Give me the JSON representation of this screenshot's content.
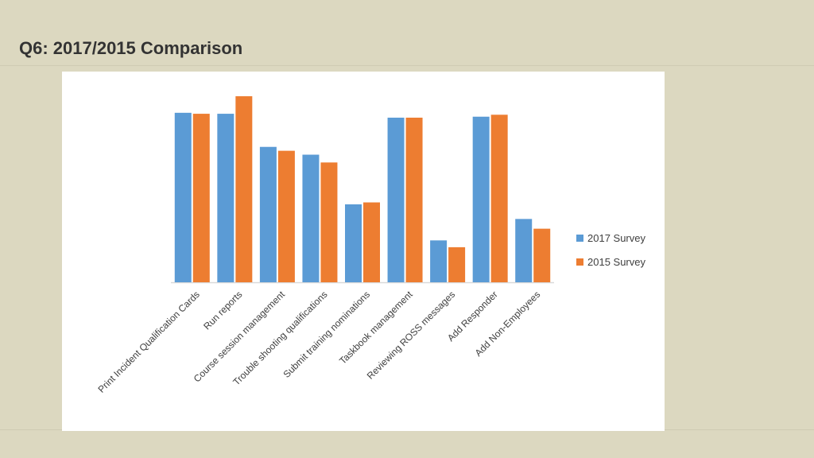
{
  "slide": {
    "title": "Q6: 2017/2015 Comparison"
  },
  "colors": {
    "series_2017": "#5b9bd5",
    "series_2015": "#ed7d31",
    "background": "#dcd8c0",
    "axis": "#d9d9d9"
  },
  "chart_data": {
    "type": "bar",
    "title": "",
    "xlabel": "",
    "ylabel": "",
    "ylim": [
      0,
      100
    ],
    "grid": false,
    "legend_position": "right",
    "categories": [
      "Print Incident Qualification Cards",
      "Run reports",
      "Course session management",
      "Trouble shooting qualifications",
      "Submit training nominations",
      "Taskbook management",
      "Reviewing ROSS messages",
      "Add Responder",
      "Add Non-Employees"
    ],
    "series": [
      {
        "name": "2017 Survey",
        "values": [
          87,
          86.5,
          69.5,
          65.5,
          40,
          84.5,
          21.5,
          85,
          32.5
        ]
      },
      {
        "name": "2015 Survey",
        "values": [
          86.5,
          95.5,
          67.5,
          61.5,
          41,
          84.5,
          18,
          86,
          27.5
        ]
      }
    ]
  }
}
